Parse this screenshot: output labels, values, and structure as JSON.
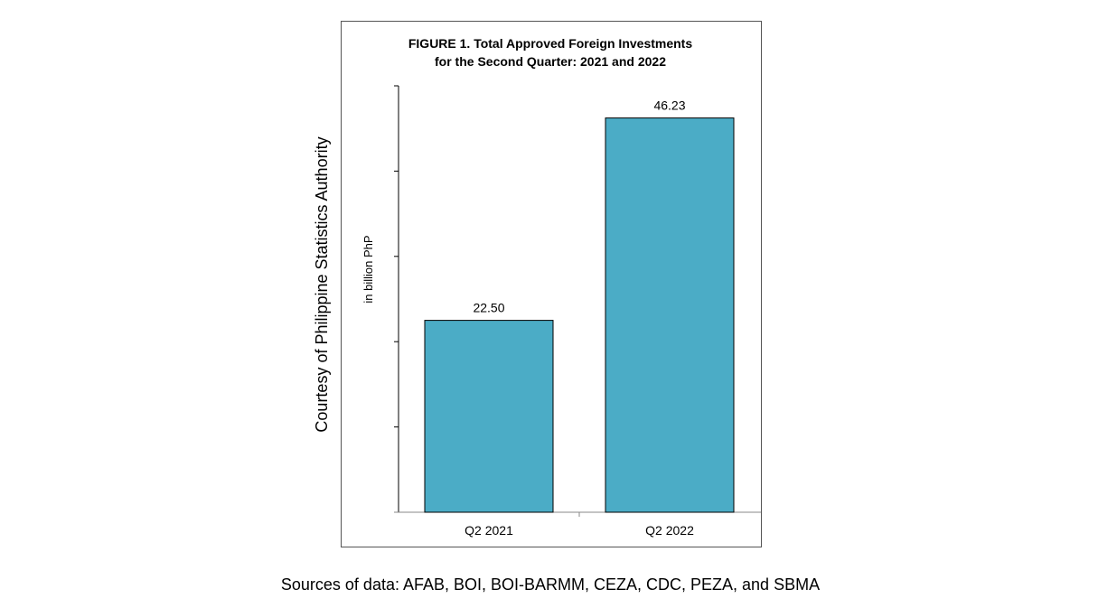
{
  "side_caption": "Courtesy of Philippine Statistics Authority",
  "sources": "Sources of data:  AFAB, BOI, BOI-BARMM, CEZA, CDC, PEZA, and SBMA",
  "chart_data": {
    "type": "bar",
    "title_line1": "FIGURE 1. Total Approved Foreign Investments",
    "title_line2": "for the Second Quarter: 2021 and 2022",
    "ylabel": "in billion PhP",
    "xlabel": "",
    "categories": [
      "Q2 2021",
      "Q2 2022"
    ],
    "values": [
      22.5,
      46.23
    ],
    "data_labels": [
      "22.50",
      "46.23"
    ],
    "ylim": [
      0,
      50
    ],
    "y_ticks": [
      0,
      10,
      20,
      30,
      40,
      50
    ],
    "y_tick_labels_shown": false,
    "grid": false,
    "legend": "none",
    "bar_color": "#4BACC6"
  }
}
